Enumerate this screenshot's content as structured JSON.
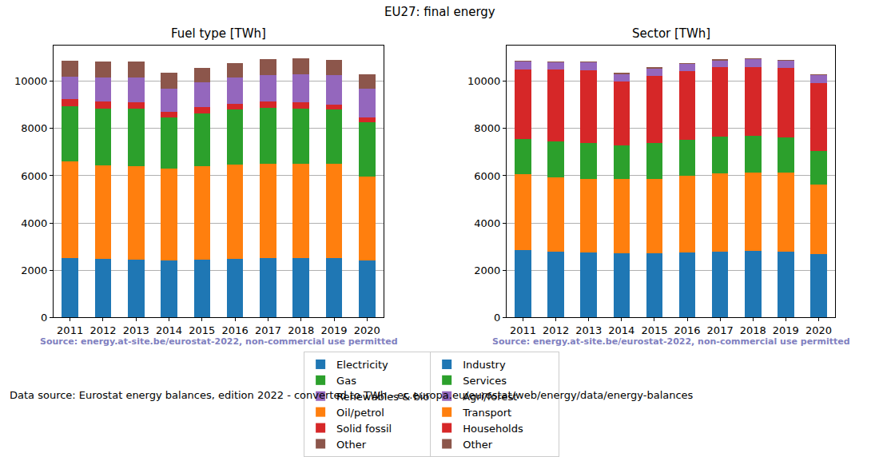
{
  "title": "EU27: final energy",
  "note": "Data source: Eurostat energy balances, edition 2022 - converted to TWh - ec.europa.eu/eurostat/web/energy/data/energy-balances",
  "chart_data": [
    {
      "type": "bar",
      "title": "Fuel type [TWh]",
      "annotation": "Source: energy.at-site.be/eurostat-2022, non-commercial use permitted",
      "stacked": true,
      "grid": true,
      "legend": "bottom",
      "categories": [
        "2011",
        "2012",
        "2013",
        "2014",
        "2015",
        "2016",
        "2017",
        "2018",
        "2019",
        "2020"
      ],
      "ylim": [
        0,
        11500
      ],
      "yticks": [
        0,
        2000,
        4000,
        6000,
        8000,
        10000
      ],
      "series": [
        {
          "name": "Electricity",
          "color": "#1f77b4",
          "values": [
            2500,
            2480,
            2460,
            2400,
            2450,
            2490,
            2520,
            2520,
            2500,
            2400
          ]
        },
        {
          "name": "Oil/petrol",
          "color": "#ff7f0e",
          "values": [
            4100,
            3970,
            3940,
            3900,
            3950,
            3990,
            4000,
            4000,
            4020,
            3580
          ]
        },
        {
          "name": "Gas",
          "color": "#2ca02c",
          "values": [
            2350,
            2400,
            2450,
            2150,
            2250,
            2320,
            2360,
            2330,
            2280,
            2270
          ]
        },
        {
          "name": "Solid fossil",
          "color": "#d62728",
          "values": [
            300,
            300,
            250,
            250,
            250,
            250,
            250,
            250,
            220,
            220
          ]
        },
        {
          "name": "Renewables & biofuel",
          "color": "#9467bd",
          "values": [
            950,
            1000,
            1050,
            1000,
            1050,
            1100,
            1120,
            1200,
            1230,
            1210
          ]
        },
        {
          "name": "Other",
          "color": "#8c564b",
          "values": [
            670,
            680,
            680,
            650,
            620,
            630,
            680,
            670,
            650,
            620
          ]
        }
      ]
    },
    {
      "type": "bar",
      "title": "Sector [TWh]",
      "annotation": "Source: energy.at-site.be/eurostat-2022, non-commercial use permitted",
      "stacked": true,
      "grid": true,
      "legend": "bottom",
      "categories": [
        "2011",
        "2012",
        "2013",
        "2014",
        "2015",
        "2016",
        "2017",
        "2018",
        "2019",
        "2020"
      ],
      "ylim": [
        0,
        11500
      ],
      "yticks": [
        0,
        2000,
        4000,
        6000,
        8000,
        10000
      ],
      "series": [
        {
          "name": "Industry",
          "color": "#1f77b4",
          "values": [
            2850,
            2800,
            2760,
            2720,
            2720,
            2760,
            2800,
            2830,
            2790,
            2700
          ]
        },
        {
          "name": "Transport",
          "color": "#ff7f0e",
          "values": [
            3230,
            3130,
            3100,
            3130,
            3150,
            3250,
            3310,
            3320,
            3360,
            2910
          ]
        },
        {
          "name": "Services",
          "color": "#2ca02c",
          "values": [
            1490,
            1520,
            1520,
            1420,
            1510,
            1520,
            1540,
            1530,
            1470,
            1420
          ]
        },
        {
          "name": "Households",
          "color": "#d62728",
          "values": [
            2930,
            3050,
            3070,
            2710,
            2840,
            2910,
            2930,
            2920,
            2940,
            2890
          ]
        },
        {
          "name": "Agri/forest",
          "color": "#9467bd",
          "values": [
            330,
            290,
            340,
            320,
            310,
            290,
            300,
            320,
            300,
            330
          ]
        },
        {
          "name": "Other",
          "color": "#8c564b",
          "values": [
            50,
            50,
            50,
            50,
            50,
            50,
            50,
            50,
            50,
            50
          ]
        }
      ]
    }
  ]
}
